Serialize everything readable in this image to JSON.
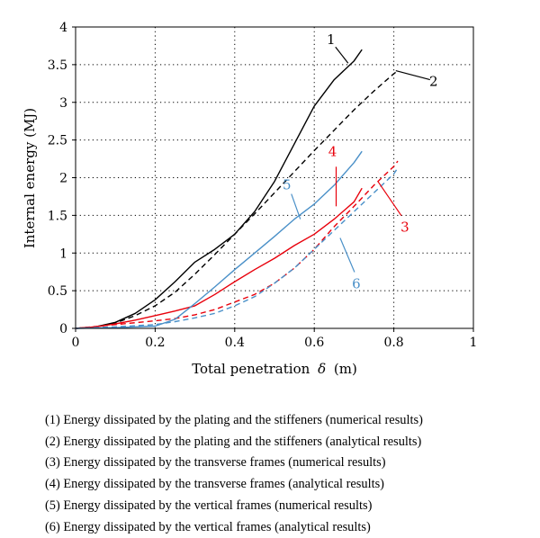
{
  "chart_data": {
    "type": "line",
    "title": "",
    "xlabel": "Total penetration",
    "xlabel_symbol": "δ",
    "xlabel_unit": "(m)",
    "ylabel": "Internal energy (MJ)",
    "xlim": [
      0,
      1
    ],
    "ylim": [
      0,
      4
    ],
    "x_ticks": [
      "0",
      "0.2",
      "0.4",
      "0.6",
      "0.8",
      "1"
    ],
    "y_ticks": [
      "0",
      "0.5",
      "1",
      "1.5",
      "2",
      "2.5",
      "3",
      "3.5",
      "4"
    ],
    "grid": "dotted",
    "legend_position": "below",
    "series": [
      {
        "label": "1",
        "color": "#000000",
        "style": "solid",
        "x": [
          0,
          0.05,
          0.1,
          0.15,
          0.2,
          0.25,
          0.3,
          0.35,
          0.4,
          0.45,
          0.5,
          0.55,
          0.6,
          0.65,
          0.7,
          0.72
        ],
        "y": [
          0,
          0.02,
          0.08,
          0.2,
          0.38,
          0.62,
          0.88,
          1.05,
          1.25,
          1.55,
          1.95,
          2.45,
          2.95,
          3.3,
          3.55,
          3.7
        ]
      },
      {
        "label": "2",
        "color": "#000000",
        "style": "dashed",
        "x": [
          0,
          0.05,
          0.1,
          0.15,
          0.2,
          0.25,
          0.3,
          0.35,
          0.4,
          0.45,
          0.5,
          0.55,
          0.6,
          0.65,
          0.7,
          0.75,
          0.8,
          0.81
        ],
        "y": [
          0,
          0.02,
          0.07,
          0.17,
          0.3,
          0.48,
          0.72,
          0.98,
          1.25,
          1.52,
          1.8,
          2.08,
          2.36,
          2.63,
          2.9,
          3.15,
          3.38,
          3.42
        ]
      },
      {
        "label": "3",
        "color": "#e8000b",
        "style": "solid",
        "x": [
          0,
          0.05,
          0.1,
          0.15,
          0.2,
          0.25,
          0.3,
          0.35,
          0.4,
          0.45,
          0.5,
          0.55,
          0.6,
          0.65,
          0.7,
          0.72
        ],
        "y": [
          0,
          0.02,
          0.06,
          0.11,
          0.17,
          0.23,
          0.3,
          0.45,
          0.62,
          0.78,
          0.93,
          1.1,
          1.25,
          1.45,
          1.68,
          1.86
        ]
      },
      {
        "label": "4",
        "color": "#e8000b",
        "style": "dashed",
        "x": [
          0,
          0.1,
          0.2,
          0.25,
          0.3,
          0.35,
          0.4,
          0.45,
          0.5,
          0.55,
          0.6,
          0.65,
          0.7,
          0.75,
          0.8,
          0.81
        ],
        "y": [
          0,
          0.05,
          0.1,
          0.13,
          0.18,
          0.25,
          0.35,
          0.45,
          0.6,
          0.8,
          1.05,
          1.35,
          1.62,
          1.9,
          2.15,
          2.22
        ]
      },
      {
        "label": "5",
        "color": "#4a90c8",
        "style": "solid",
        "x": [
          0,
          0.1,
          0.2,
          0.25,
          0.3,
          0.35,
          0.4,
          0.45,
          0.5,
          0.55,
          0.6,
          0.65,
          0.7,
          0.72
        ],
        "y": [
          0,
          0.01,
          0.03,
          0.12,
          0.33,
          0.55,
          0.78,
          1.0,
          1.22,
          1.45,
          1.65,
          1.9,
          2.2,
          2.35
        ]
      },
      {
        "label": "6",
        "color": "#4a90c8",
        "style": "dashed",
        "x": [
          0,
          0.1,
          0.2,
          0.25,
          0.3,
          0.35,
          0.4,
          0.45,
          0.5,
          0.55,
          0.6,
          0.65,
          0.7,
          0.75,
          0.8,
          0.81
        ],
        "y": [
          0,
          0.02,
          0.05,
          0.09,
          0.14,
          0.2,
          0.3,
          0.42,
          0.6,
          0.8,
          1.05,
          1.3,
          1.55,
          1.8,
          2.05,
          2.13
        ]
      }
    ],
    "annotations": [
      {
        "text": "1",
        "color": "#000000",
        "anchor": [
          0.685,
          3.52
        ]
      },
      {
        "text": "2",
        "color": "#000000",
        "anchor": [
          0.805,
          3.42
        ]
      },
      {
        "text": "3",
        "color": "#e8000b",
        "anchor": [
          0.76,
          1.95
        ]
      },
      {
        "text": "4",
        "color": "#e8000b",
        "anchor": [
          0.655,
          1.62
        ]
      },
      {
        "text": "5",
        "color": "#4a90c8",
        "anchor": [
          0.565,
          1.45
        ]
      },
      {
        "text": "6",
        "color": "#4a90c8",
        "anchor": [
          0.665,
          1.2
        ]
      }
    ]
  },
  "legend": [
    "(1) Energy dissipated by the plating and the stiffeners (numerical results)",
    "(2) Energy dissipated by the plating and the stiffeners (analytical results)",
    "(3) Energy dissipated by the transverse frames (numerical results)",
    "(4) Energy dissipated by the transverse frames (analytical results)",
    "(5) Energy dissipated by the vertical frames (numerical results)",
    "(6) Energy dissipated by the vertical frames (analytical results)"
  ]
}
